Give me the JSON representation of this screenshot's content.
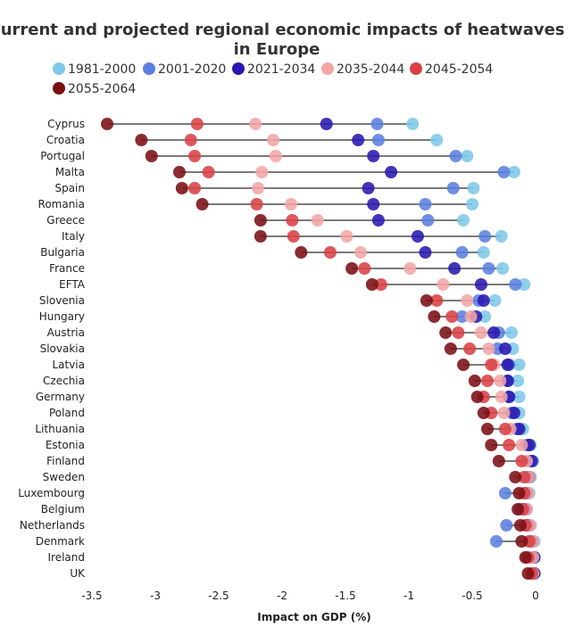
{
  "chart_data": {
    "type": "dumbbell",
    "title_lines": [
      "Current and projected regional economic impacts of heatwaves",
      "in Europe"
    ],
    "xlabel": "Impact on GDP (%)",
    "xlim": [
      -3.5,
      0
    ],
    "xticks": [
      "-3.5",
      "-3",
      "-2.5",
      "-2",
      "-1.5",
      "-1",
      "-0.5",
      "0"
    ],
    "series": [
      {
        "name": "1981-2000",
        "color": "#7ec8e8"
      },
      {
        "name": "2001-2020",
        "color": "#5b7fe0"
      },
      {
        "name": "2021-2034",
        "color": "#2a18b0"
      },
      {
        "name": "2035-2044",
        "color": "#f3a6a6"
      },
      {
        "name": "2045-2054",
        "color": "#d94145"
      },
      {
        "name": "2055-2064",
        "color": "#7a0f14"
      }
    ],
    "categories": [
      "Cyprus",
      "Croatia",
      "Portugal",
      "Malta",
      "Spain",
      "Romania",
      "Greece",
      "Italy",
      "Bulgaria",
      "France",
      "EFTA",
      "Slovenia",
      "Hungary",
      "Austria",
      "Slovakia",
      "Latvia",
      "Czechia",
      "Germany",
      "Poland",
      "Lithuania",
      "Estonia",
      "Finland",
      "Sweden",
      "Luxembourg",
      "Belgium",
      "Netherlands",
      "Denmark",
      "Ireland",
      "UK"
    ],
    "values": [
      [
        -0.97,
        -1.25,
        -1.65,
        -2.21,
        -2.67,
        -3.38
      ],
      [
        -0.78,
        -1.24,
        -1.4,
        -2.07,
        -2.72,
        -3.11
      ],
      [
        -0.54,
        -0.63,
        -1.28,
        -2.05,
        -2.69,
        -3.03
      ],
      [
        -0.17,
        -0.25,
        -1.14,
        -2.16,
        -2.58,
        -2.81
      ],
      [
        -0.49,
        -0.65,
        -1.32,
        -2.19,
        -2.69,
        -2.79
      ],
      [
        -0.5,
        -0.87,
        -1.28,
        -1.93,
        -2.2,
        -2.63
      ],
      [
        -0.57,
        -0.85,
        -1.24,
        -1.72,
        -1.92,
        -2.17
      ],
      [
        -0.27,
        -0.4,
        -0.93,
        -1.49,
        -1.91,
        -2.17
      ],
      [
        -0.41,
        -0.58,
        -0.87,
        -1.38,
        -1.62,
        -1.85
      ],
      [
        -0.26,
        -0.37,
        -0.64,
        -0.99,
        -1.35,
        -1.45
      ],
      [
        -0.09,
        -0.16,
        -0.43,
        -0.73,
        -1.22,
        -1.29
      ],
      [
        -0.32,
        -0.45,
        -0.41,
        -0.54,
        -0.78,
        -0.86
      ],
      [
        -0.4,
        -0.58,
        -0.47,
        -0.51,
        -0.66,
        -0.8
      ],
      [
        -0.19,
        -0.29,
        -0.33,
        -0.43,
        -0.61,
        -0.71
      ],
      [
        -0.18,
        -0.3,
        -0.24,
        -0.37,
        -0.52,
        -0.67
      ],
      [
        -0.13,
        -0.21,
        -0.22,
        -0.33,
        -0.35,
        -0.57
      ],
      [
        -0.14,
        -0.22,
        -0.22,
        -0.28,
        -0.38,
        -0.48
      ],
      [
        -0.13,
        -0.21,
        -0.21,
        -0.27,
        -0.41,
        -0.46
      ],
      [
        -0.13,
        -0.19,
        -0.17,
        -0.25,
        -0.35,
        -0.41
      ],
      [
        -0.1,
        -0.15,
        -0.13,
        -0.2,
        -0.24,
        -0.38
      ],
      [
        -0.04,
        -0.07,
        -0.05,
        -0.11,
        -0.21,
        -0.35
      ],
      [
        -0.02,
        -0.04,
        -0.03,
        -0.07,
        -0.11,
        -0.29
      ],
      [
        -0.04,
        -0.06,
        -0.05,
        -0.05,
        -0.09,
        -0.16
      ],
      [
        -0.05,
        -0.24,
        -0.07,
        -0.06,
        -0.09,
        -0.13
      ],
      [
        -0.07,
        -0.12,
        -0.08,
        -0.07,
        -0.1,
        -0.14
      ],
      [
        -0.04,
        -0.23,
        -0.06,
        -0.04,
        -0.08,
        -0.12
      ],
      [
        -0.01,
        -0.31,
        -0.03,
        -0.02,
        -0.05,
        -0.11
      ],
      [
        -0.01,
        -0.02,
        -0.01,
        -0.02,
        -0.06,
        -0.08
      ],
      [
        -0.01,
        -0.02,
        -0.01,
        -0.02,
        -0.03,
        -0.06
      ]
    ]
  }
}
